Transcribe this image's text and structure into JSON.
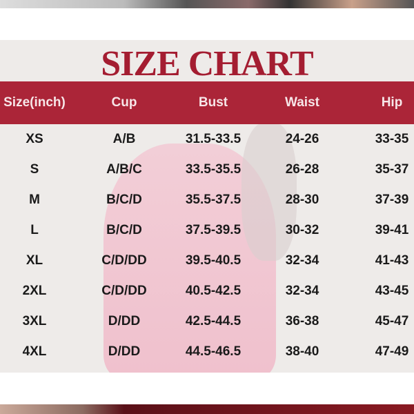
{
  "title": "SIZE CHART",
  "colors": {
    "accent": "#a41d31",
    "header_bg": "#a51428",
    "panel_bg": "#eeebe9"
  },
  "headers": [
    "Size(inch)",
    "Cup",
    "Bust",
    "Waist",
    "Hip"
  ],
  "rows": [
    [
      "XS",
      "A/B",
      "31.5-33.5",
      "24-26",
      "33-35"
    ],
    [
      "S",
      "A/B/C",
      "33.5-35.5",
      "26-28",
      "35-37"
    ],
    [
      "M",
      "B/C/D",
      "35.5-37.5",
      "28-30",
      "37-39"
    ],
    [
      "L",
      "B/C/D",
      "37.5-39.5",
      "30-32",
      "39-41"
    ],
    [
      "XL",
      "C/D/DD",
      "39.5-40.5",
      "32-34",
      "41-43"
    ],
    [
      "2XL",
      "C/D/DD",
      "40.5-42.5",
      "32-34",
      "43-45"
    ],
    [
      "3XL",
      "D/DD",
      "42.5-44.5",
      "36-38",
      "45-47"
    ],
    [
      "4XL",
      "D/DD",
      "44.5-46.5",
      "38-40",
      "47-49"
    ]
  ]
}
